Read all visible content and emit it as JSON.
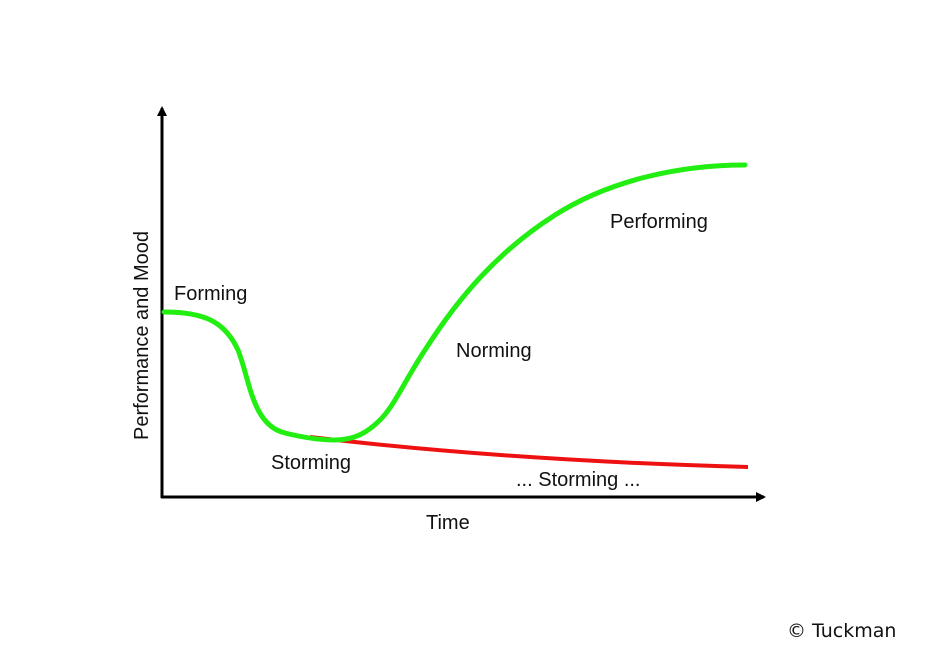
{
  "diagram": {
    "y_axis_label": "Performance and Mood",
    "x_axis_label": "Time",
    "stages": {
      "forming": "Forming",
      "storming": "Storming",
      "norming": "Norming",
      "performing": "Performing",
      "storming_continued": "... Storming ..."
    },
    "colors": {
      "success_curve": "#22ee11",
      "stuck_curve": "#ee1111",
      "axes": "#000000"
    }
  },
  "copyright": "© Tuckman"
}
